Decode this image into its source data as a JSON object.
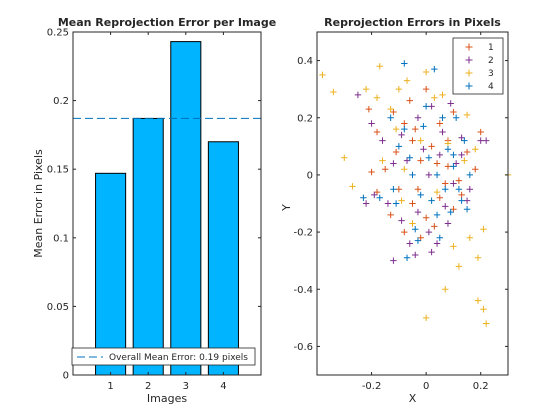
{
  "chart_data": [
    {
      "type": "bar",
      "title": "Mean Reprojection Error per Image",
      "xlabel": "Images",
      "ylabel": "Mean Error in Pixels",
      "categories": [
        "1",
        "2",
        "3",
        "4"
      ],
      "values": [
        0.147,
        0.187,
        0.243,
        0.17
      ],
      "xlim": [
        0,
        5
      ],
      "ylim": [
        0,
        0.25
      ],
      "yticks": [
        0,
        0.05,
        0.1,
        0.15,
        0.2,
        0.25
      ],
      "ytick_labels": [
        "0",
        "0.05",
        "0.1",
        "0.15",
        "0.2",
        "0.25"
      ],
      "bar_color": "#00b4ff",
      "reference_line": {
        "value": 0.187,
        "label": "Overall Mean Error: 0.19 pixels",
        "color": "#0072bd"
      },
      "legend_position": "bottom",
      "grid": false
    },
    {
      "type": "scatter",
      "title": "Reprojection Errors in Pixels",
      "xlabel": "X",
      "ylabel": "Y",
      "xlim": [
        -0.4,
        0.3
      ],
      "ylim": [
        -0.7,
        0.5
      ],
      "xticks": [
        -0.2,
        0,
        0.2
      ],
      "xtick_labels": [
        "-0.2",
        "0",
        "0.2"
      ],
      "yticks": [
        -0.6,
        -0.4,
        -0.2,
        0,
        0.2,
        0.4
      ],
      "ytick_labels": [
        "-0.6",
        "-0.4",
        "-0.2",
        "0",
        "0.2",
        "0.4"
      ],
      "legend_position": "top-right",
      "grid": false,
      "series": [
        {
          "name": "1",
          "color": "#d95319",
          "marker": "+",
          "points": [
            [
              -0.21,
              0.23
            ],
            [
              -0.18,
              0.15
            ],
            [
              -0.12,
              0.22
            ],
            [
              -0.08,
              0.18
            ],
            [
              -0.05,
              0.12
            ],
            [
              -0.02,
              0.05
            ],
            [
              0.02,
              0.1
            ],
            [
              0.05,
              0.18
            ],
            [
              0.08,
              0.03
            ],
            [
              0.12,
              -0.02
            ],
            [
              0.15,
              0.08
            ],
            [
              -0.15,
              0.02
            ],
            [
              -0.1,
              -0.05
            ],
            [
              -0.05,
              -0.1
            ],
            [
              0.0,
              -0.15
            ],
            [
              0.05,
              -0.08
            ],
            [
              0.1,
              -0.12
            ],
            [
              -0.13,
              -0.14
            ],
            [
              -0.08,
              -0.2
            ],
            [
              -0.02,
              -0.22
            ],
            [
              0.03,
              -0.18
            ],
            [
              0.08,
              0.12
            ],
            [
              -0.18,
              -0.06
            ],
            [
              0.18,
              0.02
            ],
            [
              -0.06,
              0.26
            ],
            [
              0.0,
              0.3
            ],
            [
              0.1,
              0.22
            ],
            [
              -0.03,
              -0.05
            ],
            [
              0.07,
              -0.03
            ],
            [
              0.13,
              -0.07
            ],
            [
              -0.11,
              0.08
            ],
            [
              0.04,
              0.04
            ],
            [
              -0.2,
              0.01
            ],
            [
              0.2,
              0.15
            ],
            [
              -0.04,
              0.16
            ]
          ]
        },
        {
          "name": "2",
          "color": "#7e2f8e",
          "marker": "+",
          "points": [
            [
              -0.25,
              0.28
            ],
            [
              -0.19,
              -0.07
            ],
            [
              -0.14,
              -0.1
            ],
            [
              -0.12,
              0.04
            ],
            [
              -0.09,
              -0.16
            ],
            [
              -0.06,
              -0.24
            ],
            [
              -0.03,
              -0.13
            ],
            [
              0.01,
              -0.2
            ],
            [
              0.04,
              -0.24
            ],
            [
              0.07,
              -0.11
            ],
            [
              0.1,
              -0.03
            ],
            [
              0.13,
              0.07
            ],
            [
              0.16,
              -0.05
            ],
            [
              -0.16,
              0.12
            ],
            [
              -0.09,
              0.14
            ],
            [
              -0.03,
              0.2
            ],
            [
              0.02,
              0.24
            ],
            [
              0.06,
              0.15
            ],
            [
              0.09,
              0.25
            ],
            [
              0.13,
              0.13
            ],
            [
              -0.22,
              -0.1
            ],
            [
              -0.2,
              0.18
            ],
            [
              0.2,
              0.12
            ],
            [
              -0.12,
              -0.3
            ],
            [
              0.02,
              -0.27
            ],
            [
              -0.07,
              0.05
            ],
            [
              0.01,
              0.0
            ],
            [
              0.05,
              0.07
            ],
            [
              0.11,
              0.04
            ],
            [
              0.15,
              -0.09
            ],
            [
              -0.01,
              0.09
            ],
            [
              0.08,
              -0.17
            ],
            [
              -0.04,
              -0.28
            ],
            [
              0.12,
              0.34
            ],
            [
              0.22,
              0.12
            ]
          ]
        },
        {
          "name": "3",
          "color": "#edb120",
          "marker": "+",
          "points": [
            [
              -0.38,
              0.35
            ],
            [
              -0.3,
              0.06
            ],
            [
              -0.27,
              -0.04
            ],
            [
              -0.22,
              0.3
            ],
            [
              -0.16,
              0.05
            ],
            [
              -0.11,
              0.16
            ],
            [
              -0.07,
              0.33
            ],
            [
              -0.17,
              0.38
            ],
            [
              0.0,
              -0.5
            ],
            [
              0.07,
              -0.4
            ],
            [
              0.12,
              -0.32
            ],
            [
              0.19,
              -0.44
            ],
            [
              0.21,
              -0.47
            ],
            [
              0.22,
              -0.52
            ],
            [
              0.21,
              -0.19
            ],
            [
              0.19,
              -0.29
            ],
            [
              0.3,
              0.0
            ],
            [
              -0.02,
              0.12
            ],
            [
              0.06,
              0.28
            ],
            [
              0.15,
              0.21
            ],
            [
              -0.08,
              0.02
            ],
            [
              -0.13,
              0.23
            ],
            [
              0.1,
              -0.25
            ],
            [
              0.04,
              -0.06
            ],
            [
              -0.05,
              -0.17
            ],
            [
              -0.34,
              0.29
            ],
            [
              0.16,
              -0.22
            ],
            [
              0.0,
              0.36
            ],
            [
              0.08,
              0.11
            ],
            [
              -0.1,
              0.3
            ],
            [
              0.18,
              0.09
            ],
            [
              -0.18,
              0.27
            ],
            [
              0.03,
              0.27
            ],
            [
              -0.09,
              -0.09
            ],
            [
              0.14,
              0.05
            ]
          ]
        },
        {
          "name": "4",
          "color": "#0072bd",
          "marker": "+",
          "points": [
            [
              -0.23,
              -0.08
            ],
            [
              -0.17,
              -0.08
            ],
            [
              -0.11,
              -0.1
            ],
            [
              -0.08,
              0.16
            ],
            [
              -0.05,
              0.0
            ],
            [
              -0.02,
              -0.07
            ],
            [
              0.01,
              0.06
            ],
            [
              0.04,
              0.0
            ],
            [
              0.07,
              -0.05
            ],
            [
              0.1,
              0.03
            ],
            [
              0.13,
              -0.09
            ],
            [
              0.16,
              0.0
            ],
            [
              -0.08,
              0.39
            ],
            [
              0.03,
              0.37
            ],
            [
              0.12,
              0.35
            ],
            [
              -0.13,
              0.2
            ],
            [
              -0.07,
              -0.29
            ],
            [
              0.05,
              -0.22
            ],
            [
              -0.03,
              -0.23
            ],
            [
              0.08,
              0.09
            ],
            [
              0.12,
              -0.05
            ],
            [
              -0.1,
              0.1
            ],
            [
              -0.01,
              0.17
            ],
            [
              0.04,
              -0.14
            ],
            [
              0.09,
              -0.13
            ],
            [
              0.14,
              0.12
            ],
            [
              -0.06,
              0.06
            ],
            [
              0.02,
              -0.09
            ],
            [
              -0.04,
              -0.19
            ],
            [
              0.06,
              0.2
            ],
            [
              0.1,
              0.07
            ],
            [
              0.0,
              0.24
            ],
            [
              -0.12,
              -0.05
            ],
            [
              0.11,
              0.2
            ],
            [
              0.15,
              -0.12
            ]
          ]
        }
      ]
    }
  ]
}
